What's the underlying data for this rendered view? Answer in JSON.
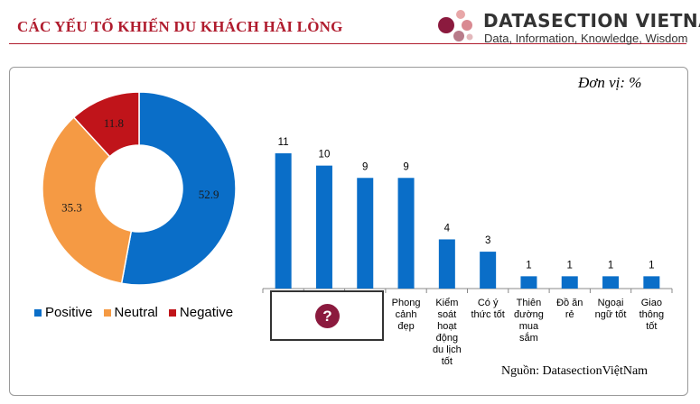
{
  "header": {
    "title": "CÁC YẾU TỐ KHIẾN DU KHÁCH HÀI LÒNG",
    "brand_name": "DATASECTION VIETNAM",
    "brand_tagline": "Data, Information, Knowledge, Wisdom"
  },
  "unit_label": "Đơn vị:  %",
  "source_label": "Nguồn:  DatasectionViệtNam",
  "placeholder_glyph": "?",
  "colors": {
    "title": "#b01c2e",
    "positive": "#0a6ec8",
    "neutral": "#f59a44",
    "negative": "#c0141a",
    "bar": "#0a6ec8",
    "badge": "#8b1a3e"
  },
  "chart_data": [
    {
      "type": "pie",
      "subtype": "donut",
      "labels": [
        "Positive",
        "Neutral",
        "Negative"
      ],
      "values": [
        52.9,
        35.3,
        11.8
      ],
      "legend_placement": "bottom"
    },
    {
      "type": "bar",
      "categories": [
        "",
        "",
        "",
        "Phong cảnh đẹp",
        "Kiểm soát hoạt động du lịch tốt",
        "Có ý thức tốt",
        "Thiên đường mua sắm",
        "Đồ ăn rẻ",
        "Ngoại ngữ tốt",
        "Giao thông tốt"
      ],
      "category_lines": [
        [],
        [],
        [],
        [
          "Phong",
          "cảnh",
          "đẹp"
        ],
        [
          "Kiểm",
          "soát",
          "hoạt",
          "động",
          "du lịch",
          "tốt"
        ],
        [
          "Có ý",
          "thức tốt"
        ],
        [
          "Thiên",
          "đường",
          "mua",
          "sắm"
        ],
        [
          "Đồ ăn",
          "rẻ"
        ],
        [
          "Ngoại",
          "ngữ tốt"
        ],
        [
          "Giao",
          "thông",
          "tốt"
        ]
      ],
      "values": [
        11,
        10,
        9,
        9,
        4,
        3,
        1,
        1,
        1,
        1
      ],
      "ylim": [
        0,
        11
      ],
      "grid": false
    }
  ]
}
